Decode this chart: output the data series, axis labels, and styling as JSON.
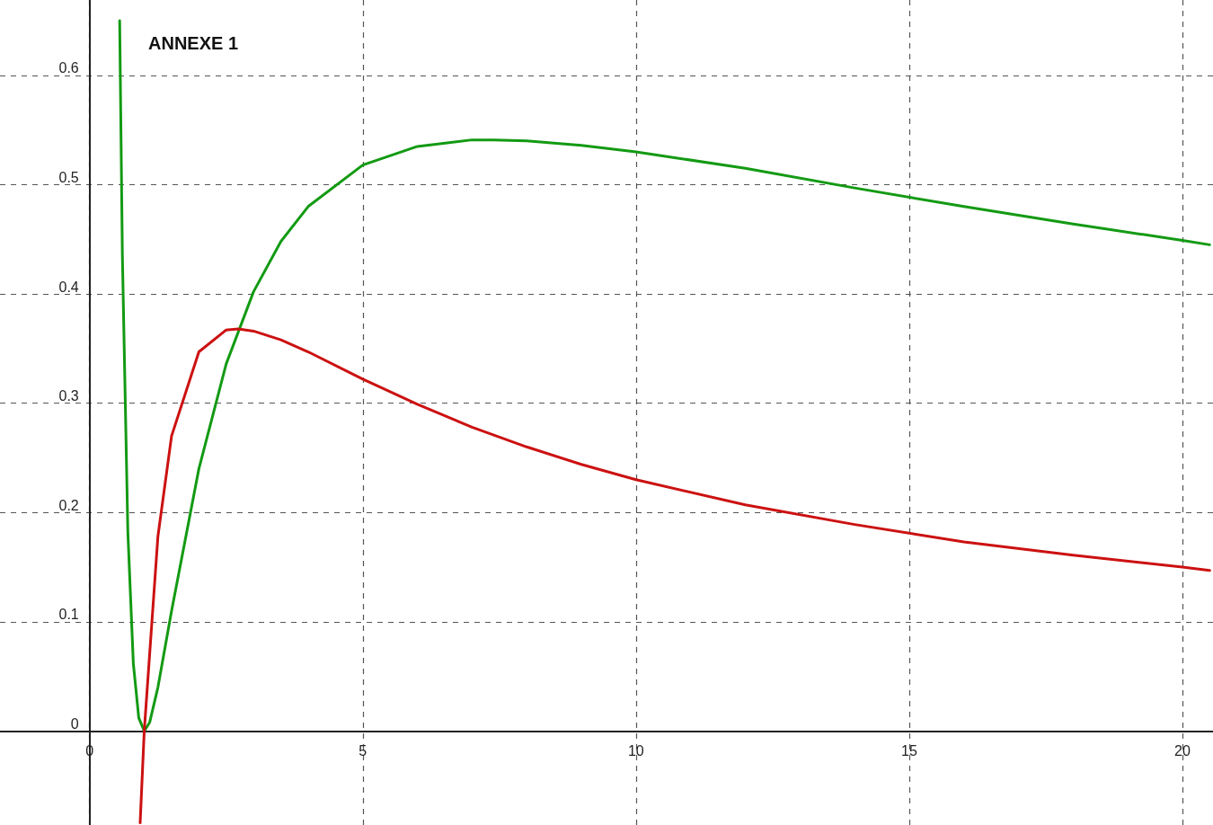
{
  "chart_data": {
    "type": "line",
    "annotations": [
      "ANNEXE 1"
    ],
    "series": [
      {
        "color": "#139a13",
        "x": [
          0.55,
          0.6,
          0.7,
          0.8,
          0.9,
          1,
          1.1,
          1.25,
          1.5,
          2,
          2.5,
          3,
          3.5,
          4,
          5,
          6,
          7,
          7.4,
          8,
          9,
          10,
          12,
          14,
          16,
          18,
          20,
          20.5
        ],
        "values": [
          0.65,
          0.435,
          0.182,
          0.062,
          0.012,
          0,
          0.008,
          0.04,
          0.11,
          0.24,
          0.336,
          0.402,
          0.448,
          0.48,
          0.518,
          0.535,
          0.541,
          0.541,
          0.54,
          0.536,
          0.53,
          0.515,
          0.497,
          0.48,
          0.464,
          0.449,
          0.445
        ]
      },
      {
        "color": "#cc1111",
        "x": [
          0.925,
          1,
          1.25,
          1.5,
          2,
          2.5,
          2.72,
          3,
          3.5,
          4,
          5,
          6,
          7,
          8,
          9,
          10,
          12,
          14,
          16,
          18,
          20,
          20.5
        ],
        "values": [
          -0.084,
          0,
          0.178,
          0.27,
          0.347,
          0.367,
          0.368,
          0.366,
          0.358,
          0.347,
          0.322,
          0.299,
          0.278,
          0.26,
          0.244,
          0.23,
          0.207,
          0.189,
          0.173,
          0.161,
          0.15,
          0.147
        ]
      }
    ],
    "xlim": [
      -1.64,
      20.56
    ],
    "ylim": [
      -0.086,
      0.669
    ],
    "xticks": [
      0,
      5,
      10,
      15,
      20
    ],
    "yticks": [
      0,
      0.1,
      0.2,
      0.3,
      0.4,
      0.5,
      0.6
    ],
    "grid": true,
    "marker": "none",
    "line_style": "solid"
  }
}
